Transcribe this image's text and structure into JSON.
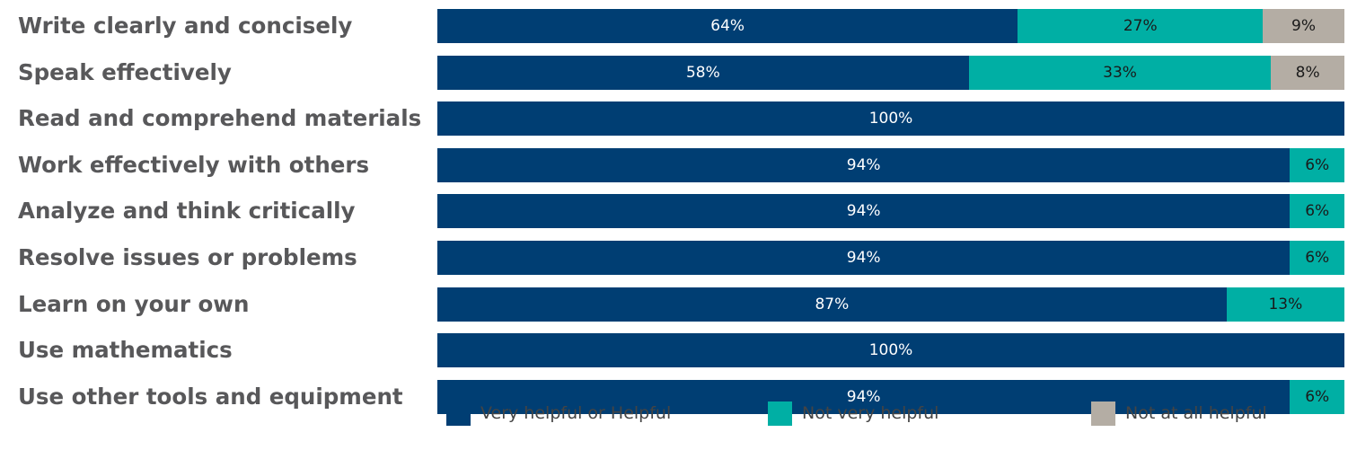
{
  "colors": {
    "very_helpful": "#003e73",
    "not_very_helpful": "#00afa4",
    "not_at_all": "#b4ada4"
  },
  "chart_data": {
    "type": "bar",
    "orientation": "horizontal",
    "stacked": true,
    "percent": true,
    "categories": [
      "Write clearly and concisely",
      "Speak effectively",
      "Read and comprehend materials",
      "Work effectively with others",
      "Analyze and think critically",
      "Resolve issues or problems",
      "Learn on your own",
      "Use mathematics",
      "Use other tools and equipment"
    ],
    "series": [
      {
        "name": "Very helpful or Helpful",
        "color": "#003e73",
        "values": [
          64,
          58,
          100,
          94,
          94,
          94,
          87,
          100,
          94
        ]
      },
      {
        "name": "Not very helpful",
        "color": "#00afa4",
        "values": [
          27,
          33,
          0,
          6,
          6,
          6,
          13,
          0,
          6
        ]
      },
      {
        "name": "Not at all helpful",
        "color": "#b4ada4",
        "values": [
          9,
          8,
          0,
          0,
          0,
          0,
          0,
          0,
          0
        ]
      }
    ],
    "xlim": [
      0,
      100
    ],
    "legend_position": "bottom",
    "grid": false,
    "value_labels": true
  }
}
